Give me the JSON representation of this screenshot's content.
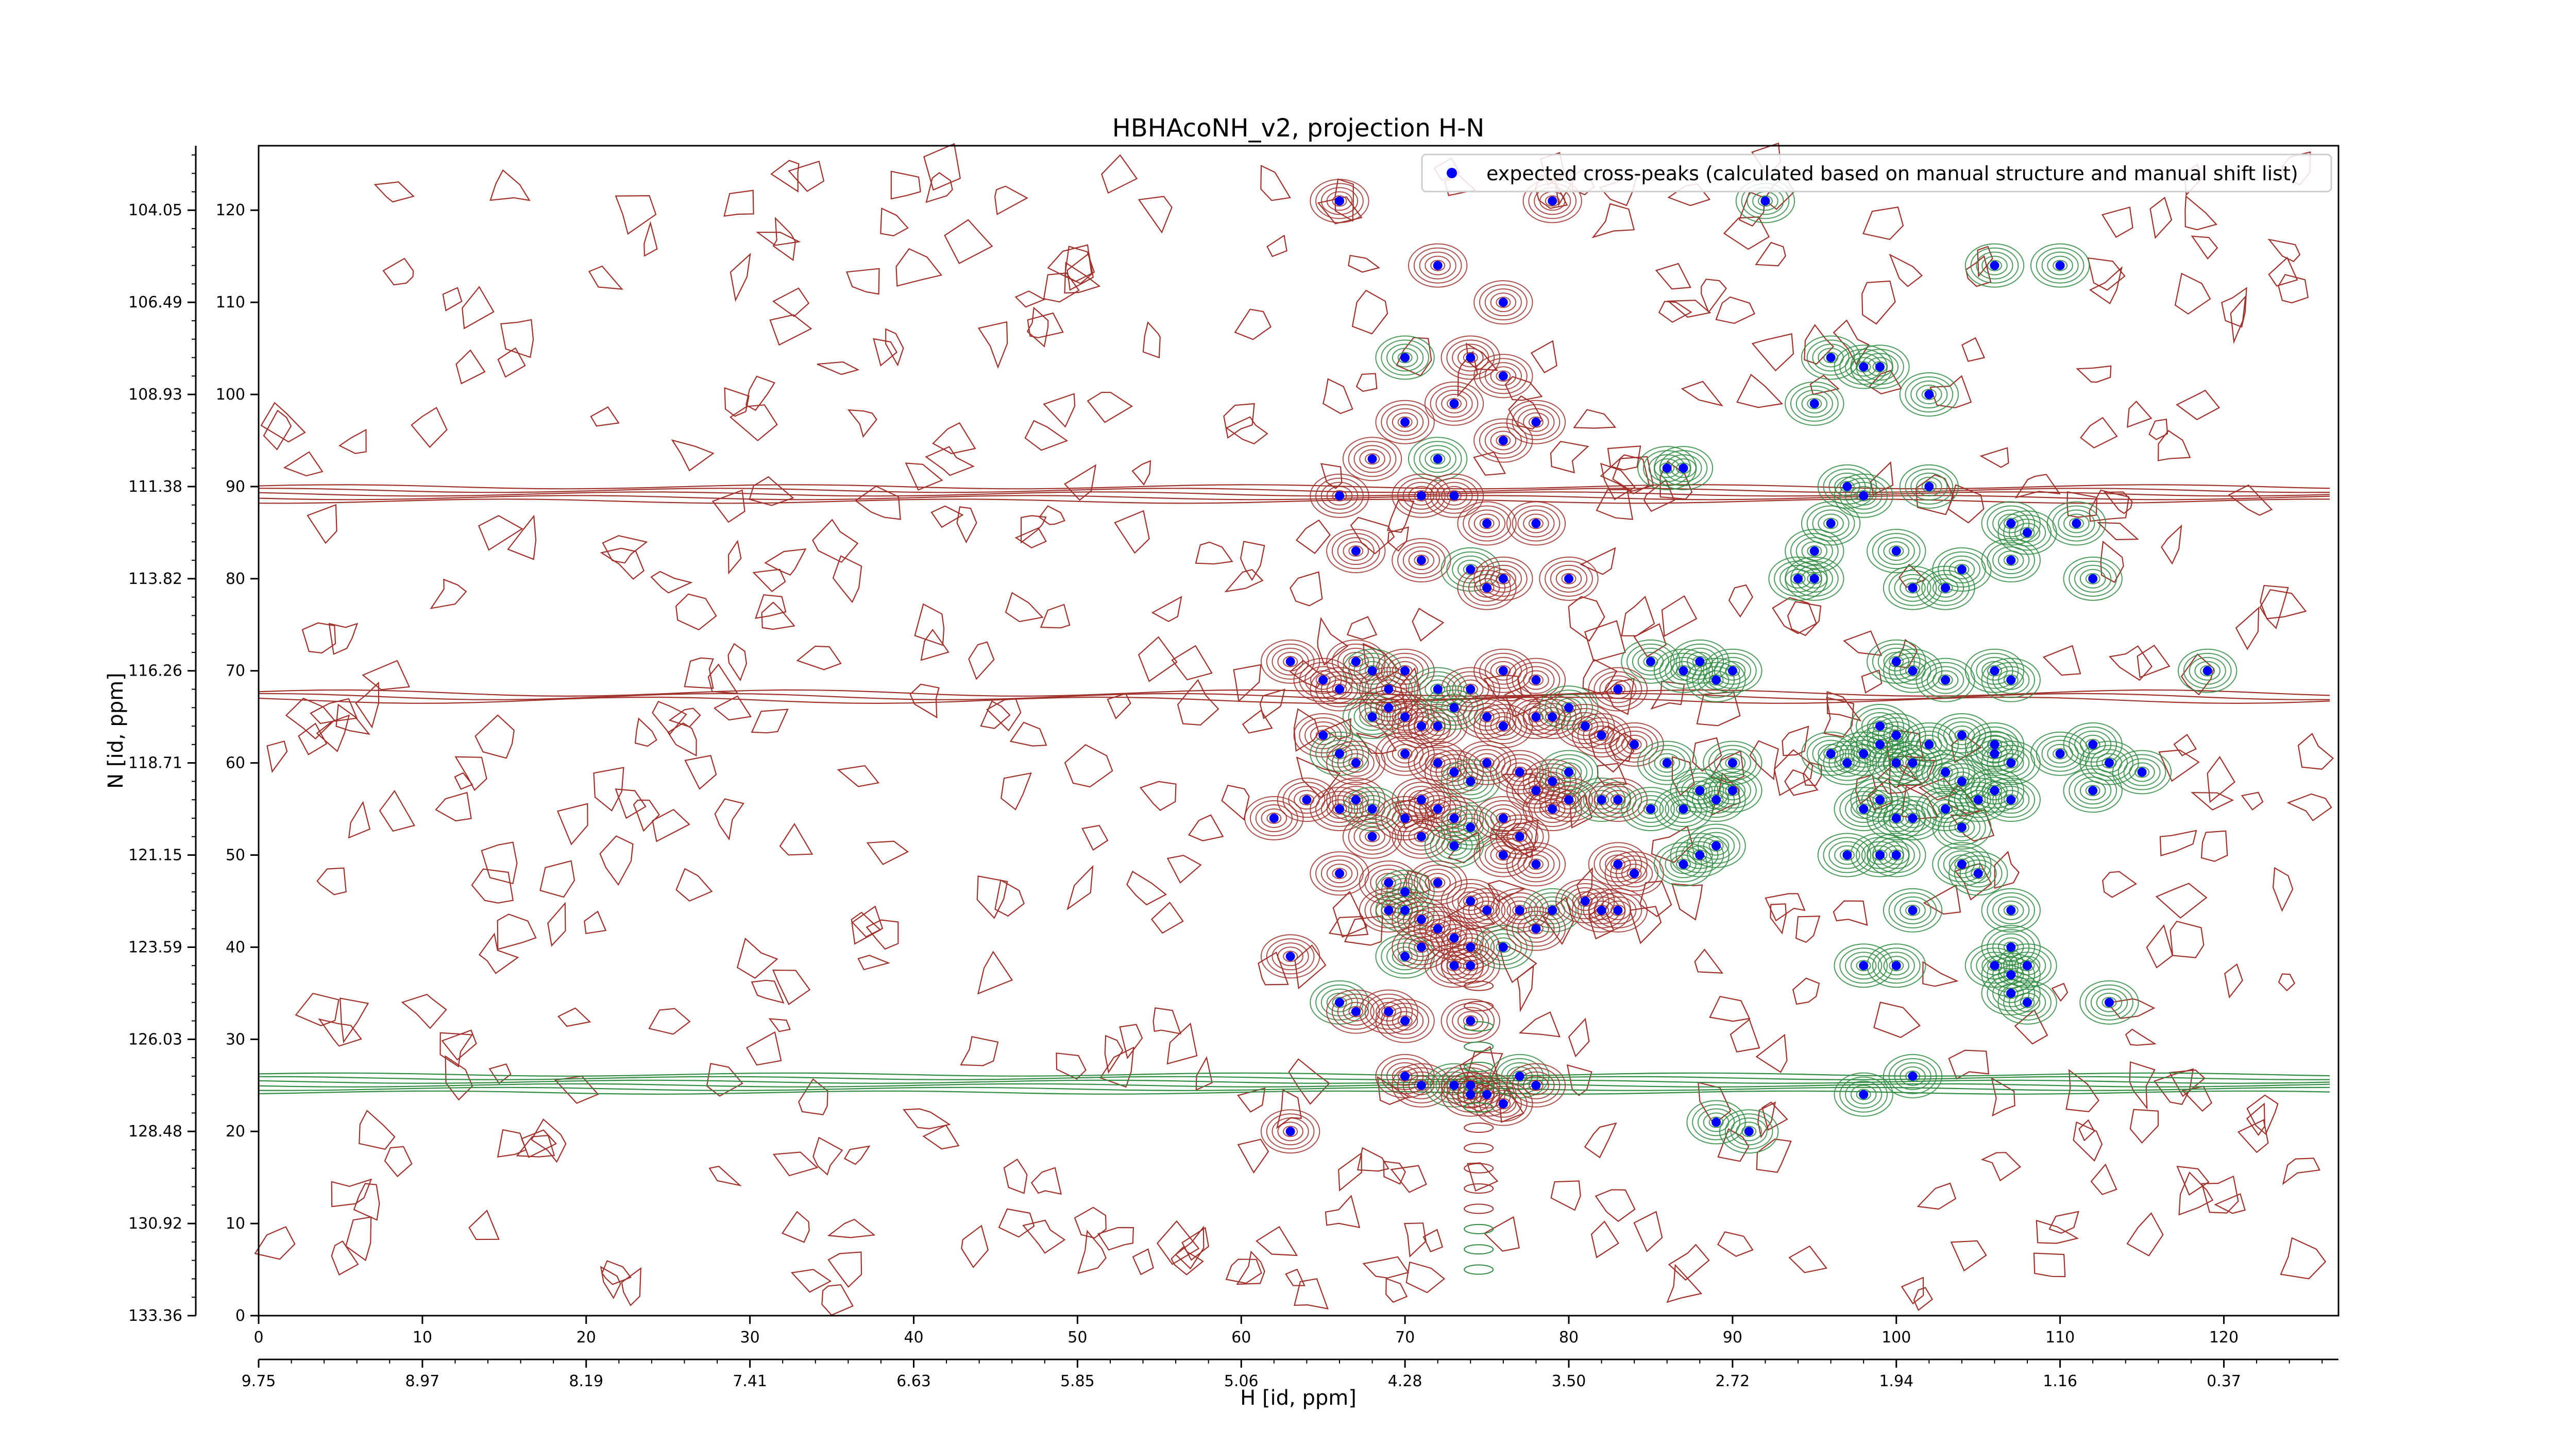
{
  "chart_data": {
    "type": "scatter",
    "title": "HBHAcoNH_v2, projection H-N",
    "xlabel": "H [id, ppm]",
    "ylabel": "N [id, ppm]",
    "x_index_ticks": [
      "0",
      "10",
      "20",
      "30",
      "40",
      "50",
      "60",
      "70",
      "80",
      "90",
      "100",
      "110",
      "120"
    ],
    "x_ppm_ticks": [
      "9.75",
      "8.97",
      "8.19",
      "7.41",
      "6.63",
      "5.85",
      "5.06",
      "4.28",
      "3.50",
      "2.72",
      "1.94",
      "1.16",
      "0.37"
    ],
    "y_index_ticks": [
      "0",
      "10",
      "20",
      "30",
      "40",
      "50",
      "60",
      "70",
      "80",
      "90",
      "100",
      "110",
      "120"
    ],
    "y_ppm_ticks": [
      "133.36",
      "130.92",
      "128.48",
      "126.03",
      "123.59",
      "121.15",
      "118.71",
      "116.26",
      "113.82",
      "111.38",
      "108.93",
      "106.49",
      "104.05"
    ],
    "xlim": [
      0,
      127
    ],
    "ylim": [
      0,
      127
    ],
    "grid": false,
    "legend_position": "top-right",
    "series": [
      {
        "name": "expected cross-peaks (calculated based on manual structure and manual shift list)",
        "color": "#0000ff",
        "marker": "circle",
        "points": [
          [
            66,
            121
          ],
          [
            79,
            121
          ],
          [
            92,
            121
          ],
          [
            72,
            114
          ],
          [
            76,
            110
          ],
          [
            106,
            114
          ],
          [
            110,
            114
          ],
          [
            70,
            104
          ],
          [
            74,
            104
          ],
          [
            76,
            102
          ],
          [
            73,
            99
          ],
          [
            96,
            104
          ],
          [
            98,
            103
          ],
          [
            99,
            103
          ],
          [
            102,
            100
          ],
          [
            95,
            99
          ],
          [
            68,
            93
          ],
          [
            72,
            93
          ],
          [
            76,
            95
          ],
          [
            78,
            97
          ],
          [
            70,
            97
          ],
          [
            86,
            92
          ],
          [
            87,
            92
          ],
          [
            66,
            89
          ],
          [
            71,
            89
          ],
          [
            73,
            89
          ],
          [
            97,
            90
          ],
          [
            98,
            89
          ],
          [
            102,
            90
          ],
          [
            75,
            86
          ],
          [
            78,
            86
          ],
          [
            96,
            86
          ],
          [
            107,
            86
          ],
          [
            108,
            85
          ],
          [
            111,
            86
          ],
          [
            67,
            83
          ],
          [
            71,
            82
          ],
          [
            74,
            81
          ],
          [
            76,
            80
          ],
          [
            75,
            79
          ],
          [
            80,
            80
          ],
          [
            95,
            83
          ],
          [
            100,
            83
          ],
          [
            104,
            81
          ],
          [
            107,
            82
          ],
          [
            103,
            79
          ],
          [
            101,
            79
          ],
          [
            95,
            80
          ],
          [
            94,
            80
          ],
          [
            112,
            80
          ],
          [
            63,
            71
          ],
          [
            67,
            71
          ],
          [
            68,
            70
          ],
          [
            70,
            70
          ],
          [
            65,
            69
          ],
          [
            66,
            68
          ],
          [
            69,
            68
          ],
          [
            72,
            68
          ],
          [
            74,
            68
          ],
          [
            76,
            70
          ],
          [
            78,
            69
          ],
          [
            85,
            71
          ],
          [
            87,
            70
          ],
          [
            88,
            71
          ],
          [
            89,
            69
          ],
          [
            90,
            70
          ],
          [
            83,
            68
          ],
          [
            100,
            71
          ],
          [
            101,
            70
          ],
          [
            103,
            69
          ],
          [
            106,
            70
          ],
          [
            107,
            69
          ],
          [
            68,
            65
          ],
          [
            69,
            66
          ],
          [
            70,
            65
          ],
          [
            71,
            64
          ],
          [
            72,
            64
          ],
          [
            73,
            66
          ],
          [
            75,
            65
          ],
          [
            76,
            64
          ],
          [
            78,
            65
          ],
          [
            79,
            65
          ],
          [
            80,
            66
          ],
          [
            81,
            64
          ],
          [
            82,
            63
          ],
          [
            84,
            62
          ],
          [
            99,
            64
          ],
          [
            100,
            63
          ],
          [
            102,
            62
          ],
          [
            104,
            63
          ],
          [
            106,
            62
          ],
          [
            65,
            63
          ],
          [
            66,
            61
          ],
          [
            67,
            60
          ],
          [
            70,
            61
          ],
          [
            72,
            60
          ],
          [
            73,
            59
          ],
          [
            74,
            58
          ],
          [
            75,
            60
          ],
          [
            77,
            59
          ],
          [
            78,
            57
          ],
          [
            79,
            58
          ],
          [
            80,
            59
          ],
          [
            86,
            60
          ],
          [
            90,
            60
          ],
          [
            96,
            61
          ],
          [
            97,
            60
          ],
          [
            98,
            61
          ],
          [
            99,
            62
          ],
          [
            100,
            60
          ],
          [
            101,
            60
          ],
          [
            103,
            59
          ],
          [
            104,
            58
          ],
          [
            106,
            61
          ],
          [
            107,
            60
          ],
          [
            110,
            61
          ],
          [
            112,
            62
          ],
          [
            113,
            60
          ],
          [
            115,
            59
          ],
          [
            64,
            56
          ],
          [
            66,
            55
          ],
          [
            67,
            56
          ],
          [
            68,
            55
          ],
          [
            70,
            54
          ],
          [
            71,
            56
          ],
          [
            72,
            55
          ],
          [
            73,
            54
          ],
          [
            74,
            53
          ],
          [
            76,
            54
          ],
          [
            77,
            52
          ],
          [
            79,
            55
          ],
          [
            80,
            56
          ],
          [
            82,
            56
          ],
          [
            83,
            56
          ],
          [
            85,
            55
          ],
          [
            87,
            55
          ],
          [
            88,
            57
          ],
          [
            89,
            56
          ],
          [
            90,
            57
          ],
          [
            98,
            55
          ],
          [
            99,
            56
          ],
          [
            100,
            54
          ],
          [
            101,
            54
          ],
          [
            103,
            55
          ],
          [
            104,
            53
          ],
          [
            105,
            56
          ],
          [
            106,
            57
          ],
          [
            107,
            56
          ],
          [
            112,
            57
          ],
          [
            62,
            54
          ],
          [
            68,
            52
          ],
          [
            71,
            52
          ],
          [
            73,
            51
          ],
          [
            76,
            50
          ],
          [
            78,
            49
          ],
          [
            83,
            49
          ],
          [
            84,
            48
          ],
          [
            87,
            49
          ],
          [
            88,
            50
          ],
          [
            89,
            51
          ],
          [
            97,
            50
          ],
          [
            99,
            50
          ],
          [
            100,
            50
          ],
          [
            104,
            49
          ],
          [
            105,
            48
          ],
          [
            66,
            48
          ],
          [
            69,
            47
          ],
          [
            70,
            46
          ],
          [
            72,
            47
          ],
          [
            74,
            45
          ],
          [
            75,
            44
          ],
          [
            77,
            44
          ],
          [
            79,
            44
          ],
          [
            81,
            45
          ],
          [
            82,
            44
          ],
          [
            83,
            44
          ],
          [
            69,
            44
          ],
          [
            70,
            44
          ],
          [
            71,
            43
          ],
          [
            72,
            42
          ],
          [
            73,
            41
          ],
          [
            74,
            40
          ],
          [
            76,
            40
          ],
          [
            78,
            42
          ],
          [
            101,
            44
          ],
          [
            107,
            44
          ],
          [
            63,
            39
          ],
          [
            70,
            39
          ],
          [
            71,
            40
          ],
          [
            73,
            38
          ],
          [
            74,
            38
          ],
          [
            98,
            38
          ],
          [
            100,
            38
          ],
          [
            107,
            40
          ],
          [
            106,
            38
          ],
          [
            107,
            37
          ],
          [
            108,
            38
          ],
          [
            66,
            34
          ],
          [
            67,
            33
          ],
          [
            69,
            33
          ],
          [
            70,
            32
          ],
          [
            74,
            32
          ],
          [
            107,
            35
          ],
          [
            108,
            34
          ],
          [
            113,
            34
          ],
          [
            70,
            26
          ],
          [
            71,
            25
          ],
          [
            73,
            25
          ],
          [
            74,
            24
          ],
          [
            75,
            24
          ],
          [
            76,
            23
          ],
          [
            74,
            25
          ],
          [
            77,
            26
          ],
          [
            78,
            25
          ],
          [
            98,
            24
          ],
          [
            101,
            26
          ],
          [
            63,
            20
          ],
          [
            89,
            21
          ],
          [
            91,
            20
          ],
          [
            119,
            70
          ]
        ]
      }
    ]
  },
  "contour_colors": {
    "positive": "#a0302a",
    "negative": "#2e8b3f"
  }
}
